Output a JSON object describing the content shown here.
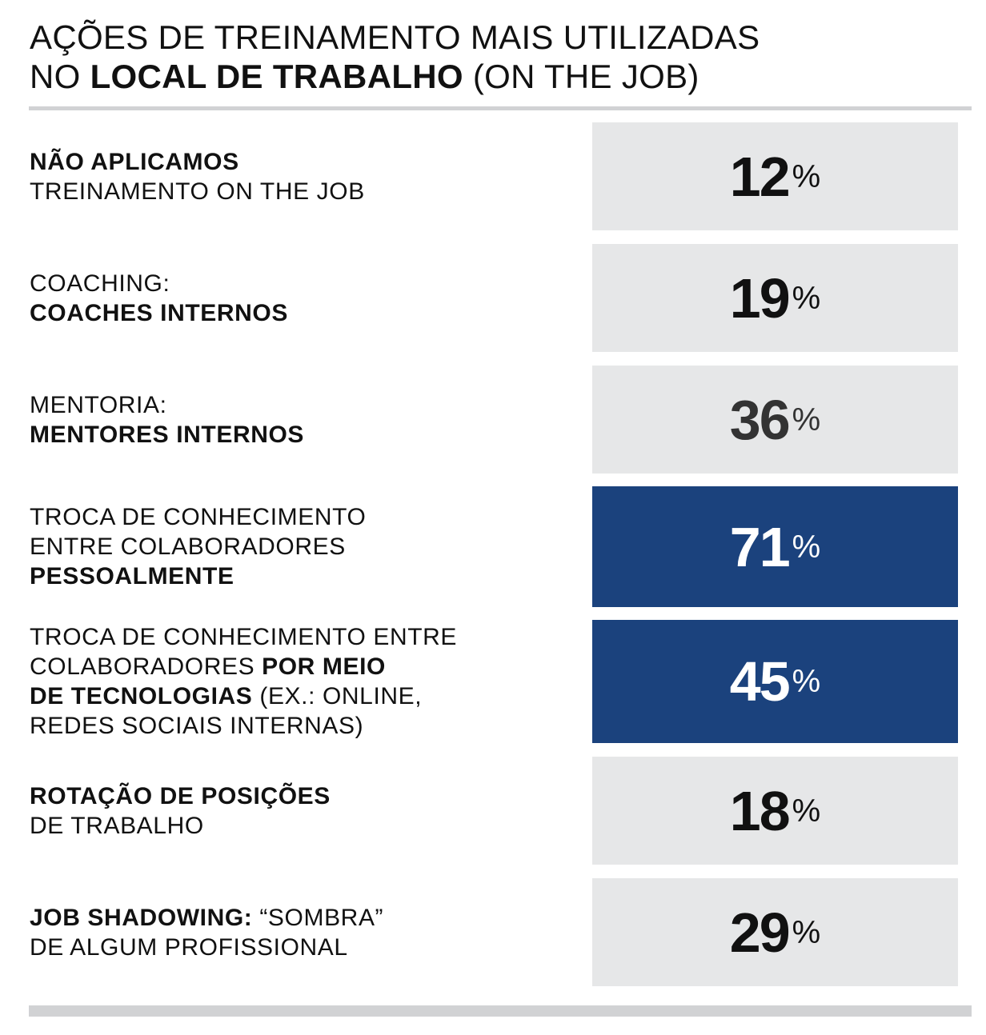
{
  "colors": {
    "box": "#e6e7e8",
    "highlight": "#1b427d",
    "rule": "#d1d2d4",
    "text": "#111111"
  },
  "title": {
    "line1": "AÇÕES DE TREINAMENTO MAIS UTILIZADAS",
    "line2_pre": "NO ",
    "line2_bold": "LOCAL DE TRABALHO",
    "line2_post": " (ON THE JOB)"
  },
  "chart_data": {
    "type": "table",
    "title": "AÇÕES DE TREINAMENTO MAIS UTILIZADAS NO LOCAL DE TRABALHO (ON THE JOB)",
    "unit": "%",
    "rows": [
      {
        "value": 12,
        "highlight": false,
        "lines": [
          [
            {
              "t": "NÃO APLICAMOS",
              "b": true
            }
          ],
          [
            {
              "t": "TREINAMENTO ON THE JOB",
              "b": false
            }
          ]
        ]
      },
      {
        "value": 19,
        "highlight": false,
        "lines": [
          [
            {
              "t": "COACHING:",
              "b": false
            }
          ],
          [
            {
              "t": "COACHES INTERNOS",
              "b": true
            }
          ]
        ]
      },
      {
        "value": 36,
        "highlight": false,
        "lines": [
          [
            {
              "t": "MENTORIA:",
              "b": false
            }
          ],
          [
            {
              "t": "MENTORES INTERNOS",
              "b": true
            }
          ]
        ]
      },
      {
        "value": 71,
        "highlight": true,
        "lines": [
          [
            {
              "t": "TROCA DE CONHECIMENTO",
              "b": false
            }
          ],
          [
            {
              "t": "ENTRE COLABORADORES",
              "b": false
            }
          ],
          [
            {
              "t": "PESSOALMENTE",
              "b": true
            }
          ]
        ]
      },
      {
        "value": 45,
        "highlight": true,
        "lines": [
          [
            {
              "t": "TROCA DE CONHECIMENTO ENTRE",
              "b": false
            }
          ],
          [
            {
              "t": "COLABORADORES ",
              "b": false
            },
            {
              "t": "POR MEIO",
              "b": true
            }
          ],
          [
            {
              "t": "DE TECNOLOGIAS",
              "b": true
            },
            {
              "t": " (EX.: ONLINE,",
              "b": false
            }
          ],
          [
            {
              "t": "REDES SOCIAIS INTERNAS)",
              "b": false
            }
          ]
        ]
      },
      {
        "value": 18,
        "highlight": false,
        "lines": [
          [
            {
              "t": "ROTAÇÃO DE POSIÇÕES",
              "b": true
            }
          ],
          [
            {
              "t": "DE TRABALHO",
              "b": false
            }
          ]
        ]
      },
      {
        "value": 29,
        "highlight": false,
        "lines": [
          [
            {
              "t": "JOB SHADOWING:",
              "b": true
            },
            {
              "t": " “SOMBRA”",
              "b": false
            }
          ],
          [
            {
              "t": "DE ALGUM PROFISSIONAL",
              "b": false
            }
          ]
        ]
      }
    ]
  }
}
